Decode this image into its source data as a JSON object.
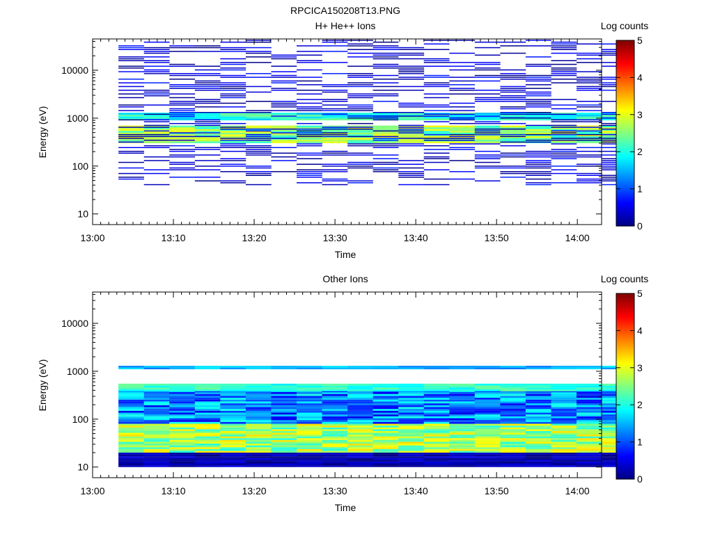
{
  "figure_title": "RPCICA150208T13.PNG",
  "colors": {
    "colormap": [
      "#000080",
      "#0000ff",
      "#0080ff",
      "#00ffff",
      "#80ff80",
      "#ffff00",
      "#ff8000",
      "#ff0000",
      "#800000"
    ],
    "axis": "#000000",
    "background": "#ffffff"
  },
  "chart_data": [
    {
      "type": "heatmap",
      "title": "H+ He++ Ions",
      "xlabel": "Time",
      "ylabel": "Energy (eV)",
      "x_ticks": [
        "13:00",
        "13:10",
        "13:20",
        "13:30",
        "13:40",
        "13:50",
        "14:00"
      ],
      "x_range_minutes": [
        0,
        63
      ],
      "y_scale": "log",
      "y_ticks": [
        "10",
        "100",
        "1000",
        "10000"
      ],
      "y_range": [
        6,
        45000
      ],
      "colorbar": {
        "label": "Log counts",
        "range": [
          0,
          5
        ],
        "ticks": [
          "0",
          "1",
          "2",
          "3",
          "4",
          "5"
        ]
      },
      "time_start_minute": 3.2,
      "time_step_minutes": 3.15,
      "time_columns": 20,
      "bands": [
        {
          "energy_range_ev": [
            300,
            700
          ],
          "log_counts": [
            2.0,
            3.2
          ]
        },
        {
          "energy_range_ev": [
            900,
            1300
          ],
          "log_counts": [
            1.5,
            2.5
          ]
        },
        {
          "energy_range_ev": [
            40,
            45000
          ],
          "log_counts": [
            0.0,
            0.8
          ],
          "sparse": true
        }
      ]
    },
    {
      "type": "heatmap",
      "title": "Other Ions",
      "xlabel": "Time",
      "ylabel": "Energy (eV)",
      "x_ticks": [
        "13:00",
        "13:10",
        "13:20",
        "13:30",
        "13:40",
        "13:50",
        "14:00"
      ],
      "x_range_minutes": [
        0,
        63
      ],
      "y_scale": "log",
      "y_ticks": [
        "10",
        "100",
        "1000",
        "10000"
      ],
      "y_range": [
        6,
        45000
      ],
      "colorbar": {
        "label": "Log counts",
        "range": [
          0,
          5
        ],
        "ticks": [
          "0",
          "1",
          "2",
          "3",
          "4",
          "5"
        ]
      },
      "time_start_minute": 3.2,
      "time_step_minutes": 3.15,
      "time_columns": 20,
      "bands": [
        {
          "energy_range_ev": [
            20,
            80
          ],
          "log_counts": [
            2.0,
            3.3
          ]
        },
        {
          "energy_range_ev": [
            80,
            400
          ],
          "log_counts": [
            0.5,
            2.0
          ]
        },
        {
          "energy_range_ev": [
            380,
            550
          ],
          "log_counts": [
            1.8,
            2.4
          ]
        },
        {
          "energy_range_ev": [
            1100,
            1300
          ],
          "log_counts": [
            1.2,
            1.8
          ]
        },
        {
          "energy_range_ev": [
            10,
            20
          ],
          "log_counts": [
            0.0,
            0.5
          ]
        }
      ]
    }
  ]
}
